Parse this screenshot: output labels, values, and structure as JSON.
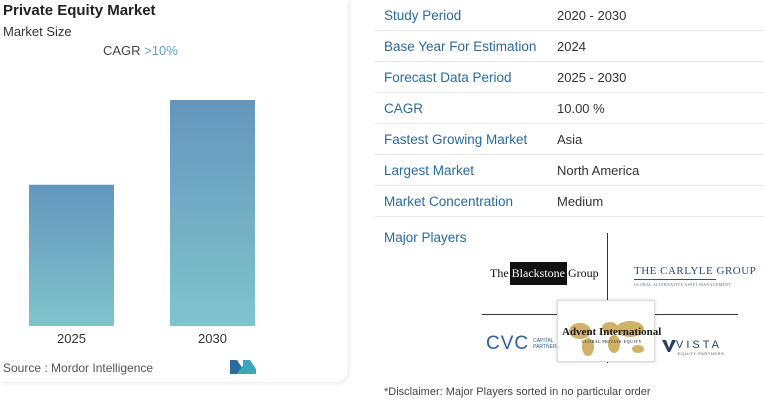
{
  "chart": {
    "title": "Private Equity Market",
    "subtitle": "Market Size",
    "cagr_label": "CAGR",
    "cagr_value": ">10%",
    "source": "Source :  Mordor Intelligence"
  },
  "chart_data": {
    "type": "bar",
    "categories": [
      "2025",
      "2030"
    ],
    "values": [
      1.0,
      1.6
    ],
    "title": "Private Equity Market",
    "subtitle": "Market Size",
    "xlabel": "",
    "ylabel": "",
    "grid": false,
    "colors": {
      "top": "#6496bd",
      "bottom": "#80c4cc"
    }
  },
  "table": {
    "rows": [
      {
        "label": "Study Period",
        "value": "2020 - 2030"
      },
      {
        "label": "Base Year For Estimation",
        "value": "2024"
      },
      {
        "label": "Forecast Data Period",
        "value": "2025 - 2030"
      },
      {
        "label": "CAGR",
        "value": "10.00 %"
      },
      {
        "label": "Fastest Growing Market",
        "value": "Asia"
      },
      {
        "label": "Largest Market",
        "value": "North America"
      },
      {
        "label": "Market Concentration",
        "value": "Medium"
      }
    ]
  },
  "players": {
    "label": "Major Players",
    "blackstone": {
      "pre": "The",
      "box": "Blackstone",
      "post": "Group"
    },
    "carlyle": {
      "name": "THE CARLYLE GROUP",
      "tag": "GLOBAL ALTERNATIVE ASSET MANAGEMENT"
    },
    "cvc": {
      "big": "CVC",
      "small1": "CAPITAL",
      "small2": "PARTNERS"
    },
    "advent": {
      "name": "Advent International",
      "tag": "GLOBAL PRIVATE EQUITY"
    },
    "vista": {
      "word": "VISTA",
      "tag": "EQUITY PARTNERS"
    }
  },
  "disclaimer": "*Disclaimer: Major Players sorted in no particular order"
}
